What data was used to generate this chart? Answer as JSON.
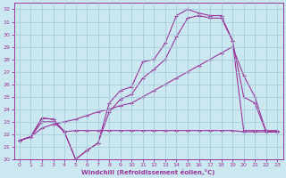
{
  "xlabel": "Windchill (Refroidissement éolien,°C)",
  "xlim": [
    -0.5,
    23.5
  ],
  "ylim": [
    20,
    32.5
  ],
  "yticks": [
    20,
    21,
    22,
    23,
    24,
    25,
    26,
    27,
    28,
    29,
    30,
    31,
    32
  ],
  "xticks": [
    0,
    1,
    2,
    3,
    4,
    5,
    6,
    7,
    8,
    9,
    10,
    11,
    12,
    13,
    14,
    15,
    16,
    17,
    18,
    19,
    20,
    21,
    22,
    23
  ],
  "bg_color": "#cbe8f0",
  "line_color": "#993399",
  "grid_color": "#a0c8d8",
  "line1_x": [
    0,
    1,
    2,
    3,
    4,
    5,
    6,
    7,
    8,
    9,
    10,
    11,
    12,
    13,
    14,
    15,
    16,
    17,
    18,
    19,
    20,
    21,
    22,
    23
  ],
  "line1_y": [
    21.5,
    21.8,
    23.3,
    23.2,
    22.2,
    20.0,
    20.7,
    21.3,
    24.5,
    25.5,
    25.8,
    27.8,
    28.0,
    29.3,
    31.5,
    32.0,
    31.7,
    31.5,
    31.5,
    29.5,
    22.3,
    22.3,
    22.3,
    22.3
  ],
  "line2_x": [
    0,
    1,
    2,
    3,
    4,
    5,
    6,
    7,
    8,
    9,
    10,
    11,
    12,
    13,
    14,
    15,
    16,
    17,
    18,
    19,
    20,
    21,
    22,
    23
  ],
  "line2_y": [
    21.5,
    21.8,
    23.3,
    23.2,
    22.2,
    20.0,
    20.7,
    21.3,
    23.8,
    24.8,
    25.2,
    26.5,
    27.2,
    28.0,
    29.8,
    31.3,
    31.5,
    31.3,
    31.3,
    29.5,
    25.0,
    24.5,
    22.2,
    22.2
  ],
  "line3_x": [
    0,
    1,
    2,
    3,
    4,
    5,
    6,
    7,
    8,
    9,
    10,
    11,
    12,
    13,
    14,
    15,
    16,
    17,
    18,
    19,
    20,
    21,
    22,
    23
  ],
  "line3_y": [
    21.5,
    21.8,
    22.5,
    22.8,
    23.0,
    23.2,
    23.5,
    23.8,
    24.0,
    24.3,
    24.5,
    25.0,
    25.5,
    26.0,
    26.5,
    27.0,
    27.5,
    28.0,
    28.5,
    29.0,
    26.7,
    25.0,
    22.2,
    22.2
  ],
  "line4_x": [
    0,
    1,
    2,
    3,
    4,
    5,
    6,
    7,
    8,
    9,
    10,
    11,
    12,
    13,
    14,
    15,
    16,
    17,
    18,
    19,
    20,
    21,
    22,
    23
  ],
  "line4_y": [
    21.5,
    21.8,
    23.0,
    23.0,
    22.2,
    22.3,
    22.3,
    22.3,
    22.3,
    22.3,
    22.3,
    22.3,
    22.3,
    22.3,
    22.3,
    22.3,
    22.3,
    22.3,
    22.3,
    22.3,
    22.2,
    22.2,
    22.2,
    22.2
  ]
}
